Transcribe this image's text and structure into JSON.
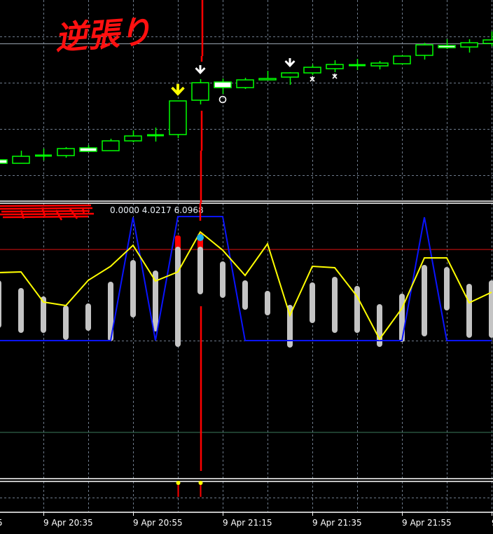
{
  "chart_data": [
    {
      "type": "candlestick",
      "pane": "main",
      "annotation_text": "逆張り",
      "times": [
        "20:25",
        "20:30",
        "20:35",
        "20:40",
        "20:45",
        "20:50",
        "20:55",
        "21:00",
        "21:05",
        "21:10",
        "21:15",
        "21:20",
        "21:25",
        "21:30",
        "21:35",
        "21:40",
        "21:45",
        "21:50",
        "21:55",
        "22:00",
        "22:05",
        "22:10",
        "22:15"
      ],
      "candles": [
        {
          "o": 72,
          "h": 72,
          "l": 67,
          "c": 67
        },
        {
          "o": 67,
          "h": 85,
          "l": 67,
          "c": 77
        },
        {
          "o": 78,
          "h": 88,
          "l": 71,
          "c": 78
        },
        {
          "o": 78,
          "h": 90,
          "l": 75,
          "c": 88
        },
        {
          "o": 89,
          "h": 93,
          "l": 84,
          "c": 84
        },
        {
          "o": 85,
          "h": 102,
          "l": 85,
          "c": 99
        },
        {
          "o": 99,
          "h": 114,
          "l": 97,
          "c": 106
        },
        {
          "o": 107,
          "h": 118,
          "l": 98,
          "c": 107
        },
        {
          "o": 108,
          "h": 156,
          "l": 103,
          "c": 156
        },
        {
          "o": 157,
          "h": 187,
          "l": 151,
          "c": 182
        },
        {
          "o": 183,
          "h": 188,
          "l": 166,
          "c": 175
        },
        {
          "o": 175,
          "h": 189,
          "l": 173,
          "c": 186
        },
        {
          "o": 186,
          "h": 199,
          "l": 186,
          "c": 188
        },
        {
          "o": 190,
          "h": 197,
          "l": 179,
          "c": 196
        },
        {
          "o": 196,
          "h": 208,
          "l": 193,
          "c": 204
        },
        {
          "o": 202,
          "h": 214,
          "l": 197,
          "c": 208
        },
        {
          "o": 207,
          "h": 216,
          "l": 200,
          "c": 207
        },
        {
          "o": 206,
          "h": 213,
          "l": 201,
          "c": 210
        },
        {
          "o": 209,
          "h": 221,
          "l": 208,
          "c": 220
        },
        {
          "o": 221,
          "h": 239,
          "l": 215,
          "c": 236
        },
        {
          "o": 235,
          "h": 244,
          "l": 230,
          "c": 232
        },
        {
          "o": 233,
          "h": 244,
          "l": 225,
          "c": 239
        },
        {
          "o": 238,
          "h": 255,
          "l": 234,
          "c": 243
        }
      ],
      "level_line": 238,
      "markers": [
        {
          "bar": 8,
          "type": "down-arrow",
          "color": "#ffff00"
        },
        {
          "bar": 9,
          "type": "down-arrow",
          "color": "#ffffff"
        },
        {
          "bar": 13,
          "type": "down-arrow",
          "color": "#ffffff"
        },
        {
          "bar": 10,
          "type": "circle",
          "color": "#ffffff"
        },
        {
          "bar": 14,
          "type": "asterisk",
          "color": "#ffffff"
        },
        {
          "bar": 15,
          "type": "asterisk",
          "color": "#ffffff"
        }
      ],
      "colors": {
        "bull": "#00ff00",
        "bear": "#ffffff",
        "grid": "#6e7b8b",
        "cursor_line": "#ff0000"
      }
    },
    {
      "type": "line+histogram",
      "pane": "indicator",
      "values_readout": "0.0000 4.0217 6.0968",
      "ylim": [
        -9.85,
        9.8
      ],
      "histogram_ranges": [
        [
          0.9,
          4.3
        ],
        [
          0.55,
          3.75
        ],
        [
          0.55,
          3.15
        ],
        [
          0.05,
          2.5
        ],
        [
          0.7,
          2.65
        ],
        [
          -0.05,
          4.2
        ],
        [
          1.65,
          5.75
        ],
        [
          0.65,
          5.0
        ],
        [
          -0.45,
          6.7
        ],
        [
          3.3,
          6.7
        ],
        [
          3.05,
          5.65
        ],
        [
          2.2,
          4.3
        ],
        [
          1.8,
          3.55
        ],
        [
          -0.5,
          2.55
        ],
        [
          1.25,
          4.15
        ],
        [
          0.55,
          4.55
        ],
        [
          0.55,
          3.9
        ],
        [
          -0.45,
          2.6
        ],
        [
          -0.1,
          3.35
        ],
        [
          0.3,
          5.4
        ],
        [
          2.15,
          5.25
        ],
        [
          0.2,
          4.05
        ],
        [
          0.2,
          4.3
        ]
      ],
      "histogram_caps": [
        {
          "bar": 8,
          "top": 7.5
        },
        {
          "bar": 9,
          "top": 7.65
        }
      ],
      "dot": {
        "bar": 9,
        "value": 7.35,
        "color": "#1ab0e8"
      },
      "series": [
        {
          "values": [
            4.85,
            4.9,
            2.75,
            2.5,
            4.3,
            5.3,
            6.8,
            4.25,
            4.9,
            7.75,
            6.45,
            4.65,
            6.9,
            1.8,
            5.3,
            5.2,
            3.15,
            0.1,
            2.3,
            5.9,
            5.9,
            2.7,
            3.45
          ],
          "color": "#ffff00"
        },
        {
          "values": [
            0,
            0,
            0,
            0,
            0,
            0,
            8.8,
            0,
            8.85,
            8.85,
            8.85,
            0,
            0,
            0,
            0,
            0,
            0,
            0,
            0,
            8.8,
            0,
            0,
            0
          ],
          "color": "#0a14ff"
        }
      ],
      "levels": [
        {
          "value": 6.5,
          "color": "#e01010"
        },
        {
          "value": -6.55,
          "color": "#3d7a5c"
        }
      ],
      "histogram_color": "#c4c4c4"
    },
    {
      "type": "signal",
      "pane": "bottom",
      "signals": [
        {
          "bar": 8
        },
        {
          "bar": 9
        }
      ],
      "colors": {
        "dot": "#ffff00",
        "stem": "#ff0000"
      }
    }
  ],
  "time_axis": {
    "labels": [
      "5",
      "9 Apr 20:35",
      "9 Apr 20:55",
      "9 Apr 21:15",
      "9 Apr 21:35",
      "9 Apr 21:55",
      "9"
    ]
  }
}
